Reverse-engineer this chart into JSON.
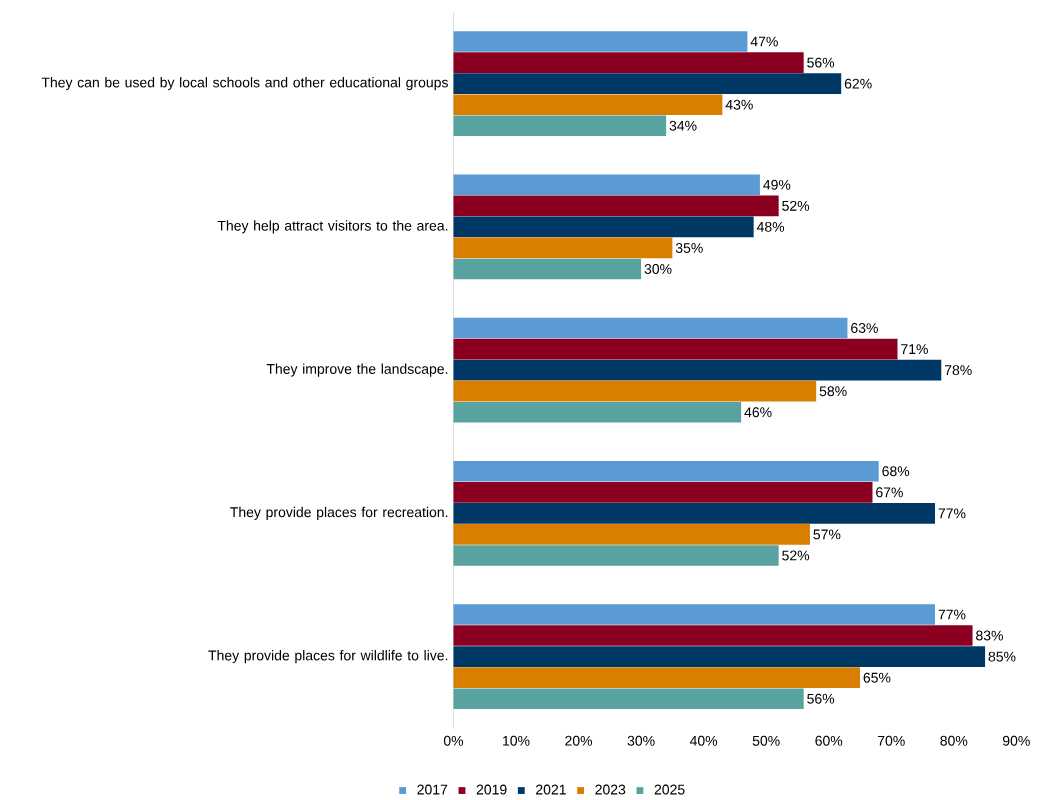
{
  "chart_data": {
    "type": "bar",
    "orientation": "horizontal",
    "categories": [
      "They can be used by local schools and other educational groups",
      "They help attract visitors to the area.",
      "They improve the landscape.",
      "They provide places for recreation.",
      "They provide places for wildlife to live."
    ],
    "series": [
      {
        "name": "2017",
        "color": "#5b9bd5",
        "values": [
          47,
          49,
          63,
          68,
          77
        ],
        "value_labels": [
          "47%",
          "49%",
          "63%",
          "68%",
          "77%"
        ]
      },
      {
        "name": "2019",
        "color": "#8b0021",
        "values": [
          56,
          52,
          71,
          67,
          83
        ],
        "value_labels": [
          "56%",
          "52%",
          "71%",
          "67%",
          "83%"
        ]
      },
      {
        "name": "2021",
        "color": "#003865",
        "values": [
          62,
          48,
          78,
          77,
          85
        ],
        "value_labels": [
          "62%",
          "48%",
          "78%",
          "77%",
          "85%"
        ]
      },
      {
        "name": "2023",
        "color": "#d97e00",
        "values": [
          43,
          35,
          58,
          57,
          65
        ],
        "value_labels": [
          "43%",
          "35%",
          "58%",
          "57%",
          "65%"
        ]
      },
      {
        "name": "2025",
        "color": "#58a2a0",
        "values": [
          34,
          30,
          46,
          52,
          56
        ],
        "value_labels": [
          "34%",
          "30%",
          "46%",
          "52%",
          "56%"
        ]
      }
    ],
    "xlim": [
      0,
      90
    ],
    "xticks": [
      {
        "value": 0,
        "label": "0%"
      },
      {
        "value": 10,
        "label": "10%"
      },
      {
        "value": 20,
        "label": "20%"
      },
      {
        "value": 30,
        "label": "30%"
      },
      {
        "value": 40,
        "label": "40%"
      },
      {
        "value": 50,
        "label": "50%"
      },
      {
        "value": 60,
        "label": "60%"
      },
      {
        "value": 70,
        "label": "70%"
      },
      {
        "value": 80,
        "label": "80%"
      },
      {
        "value": 90,
        "label": "90%"
      }
    ],
    "grid": false,
    "legend": "bottom"
  }
}
